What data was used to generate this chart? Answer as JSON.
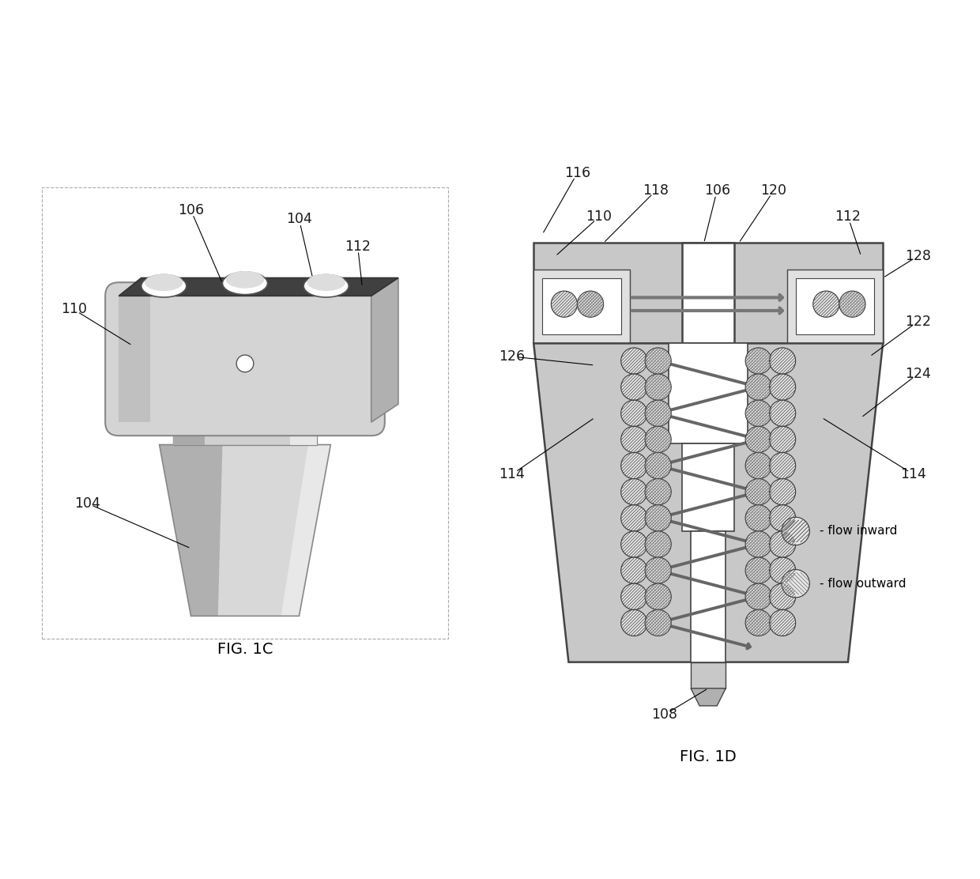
{
  "bg_color": "#ffffff",
  "fig_width": 12.4,
  "fig_height": 11.12,
  "fig1c_caption": "FIG. 1C",
  "fig1d_caption": "FIG. 1D",
  "label_color": "#1a1a1a",
  "label_fontsize": 12.5,
  "gray_body": "#c0c0c0",
  "gray_dark": "#888888",
  "gray_light": "#e0e0e0",
  "gray_fill": "#cccccc",
  "dark_top": "#3a3a3a",
  "white": "#ffffff",
  "outline": "#444444",
  "flow_arrow_color": "#666666",
  "circle_fill": "#e4e4e4",
  "circle_edge": "#333333"
}
